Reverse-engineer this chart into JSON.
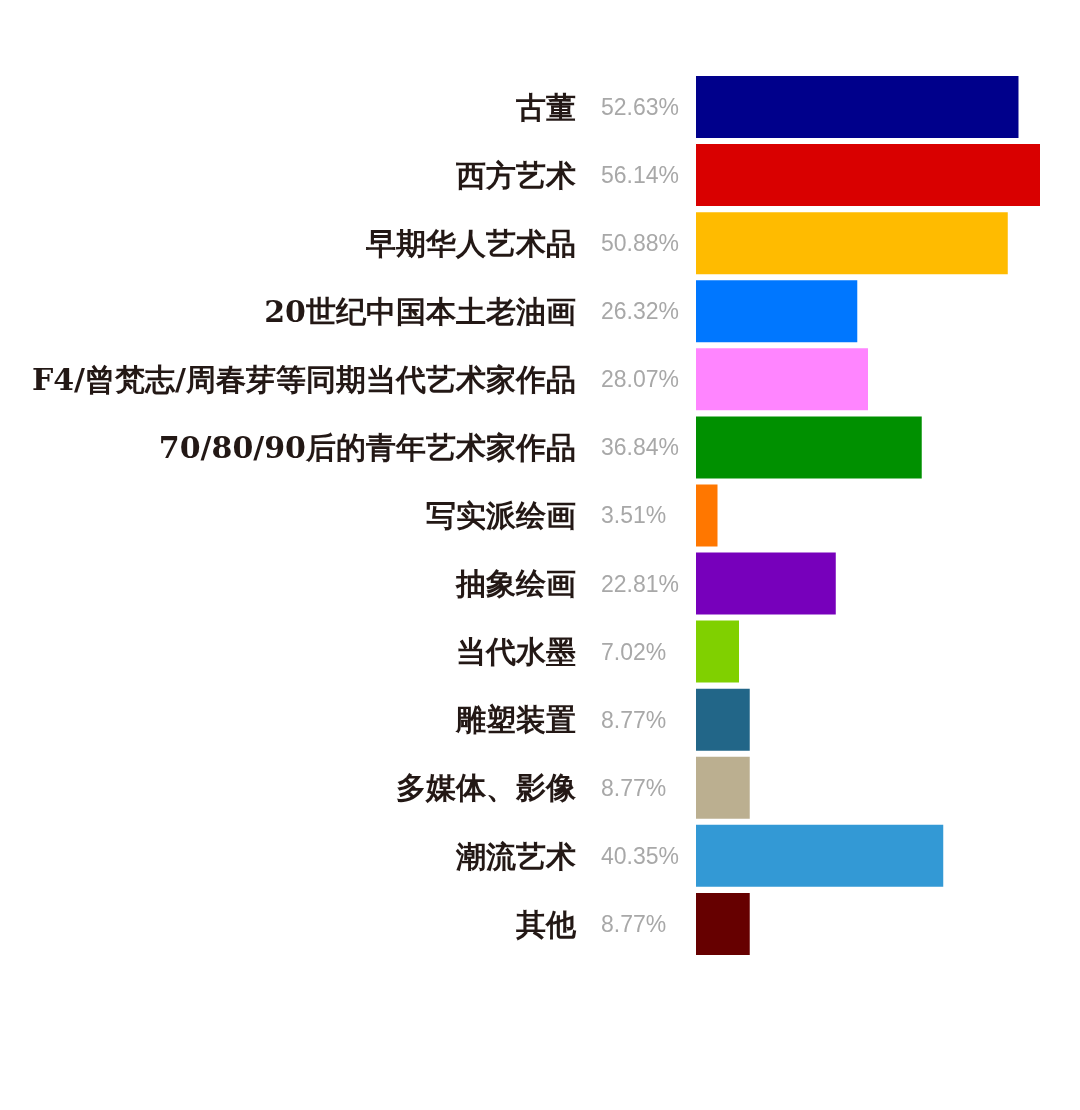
{
  "chart_data": {
    "type": "bar",
    "orientation": "horizontal",
    "tick_labels": "y",
    "categories": [
      "古董",
      "西方艺术",
      "早期华人艺术品",
      "20世纪中国本土老油画",
      "F4/曾梵志/周春芽等同期当代艺术家作品",
      "70/80/90后的青年艺术家作品",
      "写实派绘画",
      "抽象绘画",
      "当代水墨",
      "雕塑装置",
      "多媒体、影像",
      "潮流艺术",
      "其他"
    ],
    "values": [
      52.63,
      56.14,
      50.88,
      26.32,
      28.07,
      36.84,
      3.51,
      22.81,
      7.02,
      8.77,
      8.77,
      40.35,
      8.77
    ],
    "colors": [
      "#00008b",
      "#d90000",
      "#ffbb00",
      "#0077ff",
      "#ff85ff",
      "#009000",
      "#ff7700",
      "#7700bb",
      "#80d000",
      "#226688",
      "#bbaf90",
      "#3399d5",
      "#660000"
    ],
    "value_labels": [
      "52.63%",
      "56.14%",
      "50.88%",
      "26.32%",
      "28.07%",
      "36.84%",
      "3.51%",
      "22.81%",
      "7.02%",
      "8.77%",
      "8.77%",
      "40.35%",
      "8.77%"
    ]
  }
}
